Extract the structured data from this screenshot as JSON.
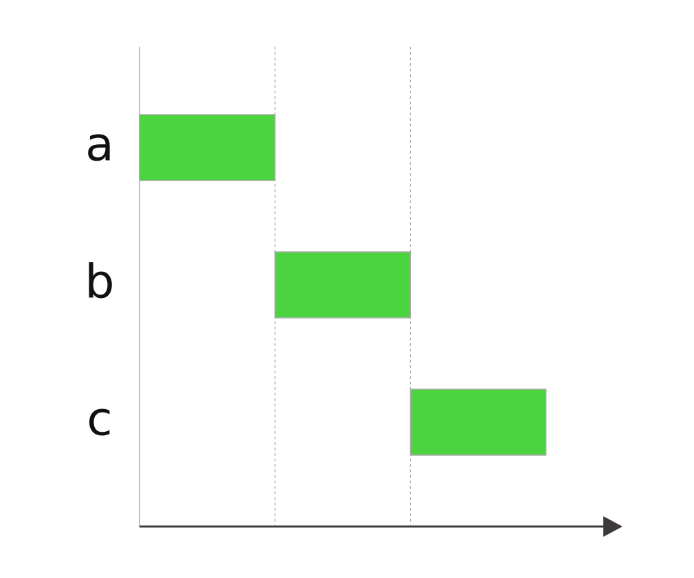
{
  "chart_data": {
    "type": "gantt",
    "categories": [
      "a",
      "b",
      "c"
    ],
    "starts": [
      0,
      1,
      2
    ],
    "ends": [
      1,
      2,
      3
    ],
    "color": "#4cd440",
    "xlim": [
      0,
      3.55
    ],
    "xticks": [
      1,
      2
    ],
    "grid": true
  }
}
